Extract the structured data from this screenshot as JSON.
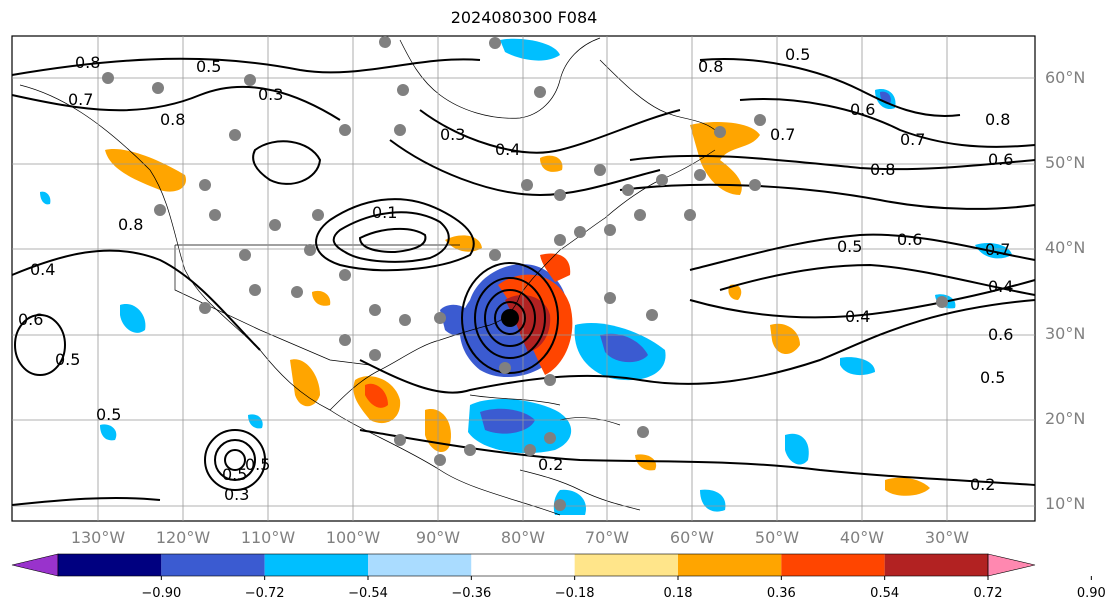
{
  "title": "2024080300 F084",
  "lat_labels": [
    "60°N",
    "50°N",
    "40°N",
    "30°N",
    "20°N",
    "10°N"
  ],
  "lon_labels": [
    "130°W",
    "120°W",
    "110°W",
    "100°W",
    "90°W",
    "80°W",
    "70°W",
    "60°W",
    "50°W",
    "40°W",
    "30°W"
  ],
  "contour_labels": [
    "0.8",
    "0.7",
    "0.3",
    "0.8",
    "0.3",
    "0.4",
    "0.8",
    "0.5",
    "0.7",
    "0.6",
    "0.7",
    "0.8",
    "0.6",
    "0.8",
    "0.5",
    "0.6",
    "0.7",
    "0.4",
    "0.4",
    "0.6",
    "0.5",
    "0.4",
    "0.5",
    "0.6",
    "0.5",
    "0.5",
    "0.5",
    "0.3",
    "0.2",
    "0.2",
    "0.1",
    "0.8",
    "0.5"
  ],
  "colorbar": {
    "colors": [
      "#9933cc",
      "#000080",
      "#3b5bd1",
      "#00bfff",
      "#aadcff",
      "#ffffff",
      "#ffe58a",
      "#ffa500",
      "#ff4500",
      "#b22222",
      "#ff88b0"
    ],
    "tick_labels": [
      "−0.90",
      "−0.72",
      "−0.54",
      "−0.36",
      "−0.18",
      "0.18",
      "0.36",
      "0.54",
      "0.72",
      "0.90"
    ]
  }
}
